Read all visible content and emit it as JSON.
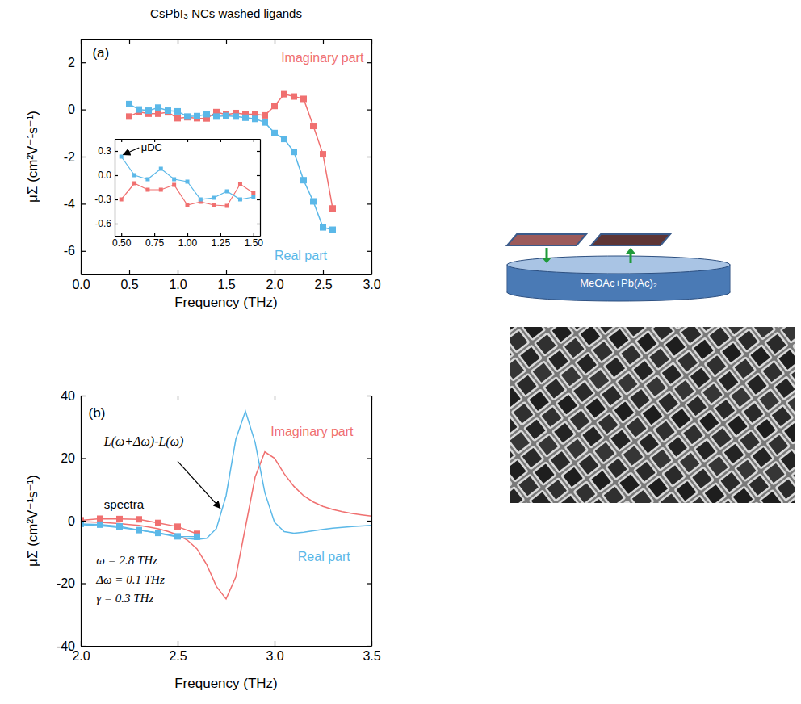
{
  "chart_data": [
    {
      "type": "line",
      "title": "CsPbI₃ NCs washed ligands",
      "x_label": "Frequency (THz)",
      "y_label": "μΣ (cm²V⁻¹s⁻¹)",
      "x": [
        0.5,
        0.6,
        0.7,
        0.8,
        0.9,
        1.0,
        1.1,
        1.2,
        1.3,
        1.4,
        1.5,
        1.6,
        1.7,
        1.8,
        1.9,
        2.0,
        2.1,
        2.2,
        2.3,
        2.4,
        2.5,
        2.6
      ],
      "series": [
        {
          "color": "#f07070",
          "marker": "square",
          "line_style": "solid",
          "values": [
            -0.3,
            -0.1,
            -0.18,
            -0.18,
            -0.12,
            -0.37,
            -0.33,
            -0.37,
            -0.38,
            -0.11,
            -0.22,
            -0.15,
            -0.2,
            -0.2,
            -0.25,
            0.15,
            0.65,
            0.55,
            0.45,
            -0.7,
            -1.9,
            -4.2
          ]
        },
        {
          "color": "#5bb8e8",
          "marker": "square",
          "line_style": "solid",
          "values": [
            0.23,
            0.0,
            -0.05,
            0.08,
            -0.05,
            -0.08,
            -0.3,
            -0.28,
            -0.2,
            -0.3,
            -0.27,
            -0.3,
            -0.35,
            -0.4,
            -0.55,
            -1.0,
            -1.25,
            -1.8,
            -3.0,
            -3.9,
            -5.0,
            -5.1
          ]
        }
      ],
      "xlim": [
        0,
        3
      ],
      "xticks": [
        {
          "value": 0,
          "label": "0.0"
        },
        {
          "value": 0.5,
          "label": "0.5"
        },
        {
          "value": 1,
          "label": "1.0"
        },
        {
          "value": 1.5,
          "label": "1.5"
        },
        {
          "value": 2,
          "label": "2.0"
        },
        {
          "value": 2.5,
          "label": "2.5"
        },
        {
          "value": 3,
          "label": "3.0"
        }
      ],
      "ylim": [
        -7,
        3
      ],
      "yticks": [
        -6,
        -4,
        -2,
        0,
        2
      ],
      "annotations": [
        "(a)",
        "Imaginary part",
        "Real part"
      ]
    },
    {
      "type": "line",
      "x": [
        0.5,
        0.6,
        0.7,
        0.8,
        0.9,
        1.0,
        1.1,
        1.2,
        1.3,
        1.4,
        1.5
      ],
      "series": [
        {
          "color": "#f07070",
          "marker": "square",
          "line_style": "solid",
          "values": [
            -0.3,
            -0.1,
            -0.18,
            -0.18,
            -0.12,
            -0.37,
            -0.33,
            -0.37,
            -0.38,
            -0.11,
            -0.22
          ]
        },
        {
          "color": "#5bb8e8",
          "marker": "square",
          "line_style": "solid",
          "values": [
            0.23,
            0.0,
            -0.05,
            0.08,
            -0.05,
            -0.08,
            -0.3,
            -0.28,
            -0.2,
            -0.3,
            -0.27
          ]
        }
      ],
      "xlim": [
        0.45,
        1.55
      ],
      "xticks": [
        {
          "value": 0.5,
          "label": "0.50"
        },
        {
          "value": 0.75,
          "label": "0.75"
        },
        {
          "value": 1,
          "label": "1.00"
        },
        {
          "value": 1.25,
          "label": "1.25"
        },
        {
          "value": 1.5,
          "label": "1.50"
        }
      ],
      "ylim": [
        -0.75,
        0.45
      ],
      "yticks": [
        0.3,
        {
          "value": 0,
          "label": "0.0"
        },
        -0.3,
        -0.6
      ],
      "annotations": [
        "μDC"
      ]
    },
    {
      "type": "line",
      "x_label": "Frequency (THz)",
      "y_label": "μΣ (cm²V⁻¹s⁻¹)",
      "series": [
        {
          "color": "#f07070",
          "marker": "none",
          "line_style": "solid",
          "x": [
            2.0,
            2.05,
            2.1,
            2.15,
            2.2,
            2.25,
            2.3,
            2.35,
            2.4,
            2.45,
            2.5,
            2.55,
            2.6,
            2.65,
            2.7,
            2.75,
            2.8,
            2.85,
            2.9,
            2.95,
            3.0,
            3.05,
            3.1,
            3.15,
            3.2,
            3.25,
            3.3,
            3.35,
            3.4,
            3.45,
            3.5
          ],
          "values": [
            -0.3,
            -0.4,
            -0.5,
            -0.7,
            -0.9,
            -1.2,
            -1.5,
            -2.0,
            -2.6,
            -3.4,
            -4.5,
            -6.2,
            -9,
            -14,
            -21,
            -25,
            -18,
            -2,
            14,
            22,
            20,
            15,
            11,
            8,
            6,
            4.6,
            3.6,
            2.9,
            2.3,
            1.9,
            1.5
          ]
        },
        {
          "color": "#5bb8e8",
          "marker": "none",
          "line_style": "solid",
          "x": [
            2.0,
            2.05,
            2.1,
            2.15,
            2.2,
            2.25,
            2.3,
            2.35,
            2.4,
            2.45,
            2.5,
            2.55,
            2.6,
            2.65,
            2.7,
            2.75,
            2.8,
            2.85,
            2.9,
            2.95,
            3.0,
            3.05,
            3.1,
            3.15,
            3.2,
            3.25,
            3.3,
            3.35,
            3.4,
            3.45,
            3.5
          ],
          "values": [
            -1.2,
            -1.4,
            -1.6,
            -1.9,
            -2.2,
            -2.6,
            -3.0,
            -3.5,
            -4.0,
            -4.6,
            -5.2,
            -5.7,
            -6.0,
            -5.6,
            -2.5,
            8,
            26,
            35,
            25,
            9,
            -0.5,
            -3.5,
            -4.0,
            -3.7,
            -3.2,
            -2.8,
            -2.4,
            -2.1,
            -1.9,
            -1.7,
            -1.5
          ]
        },
        {
          "color": "#f07070",
          "marker": "square",
          "line_style": "solid",
          "x": [
            2.0,
            2.1,
            2.2,
            2.3,
            2.4,
            2.5,
            2.6
          ],
          "values": [
            0.15,
            0.65,
            0.55,
            0.45,
            -0.7,
            -1.9,
            -4.2
          ]
        },
        {
          "color": "#5bb8e8",
          "marker": "square",
          "line_style": "solid",
          "x": [
            2.0,
            2.1,
            2.2,
            2.3,
            2.4,
            2.5,
            2.6
          ],
          "values": [
            -1.0,
            -1.25,
            -1.8,
            -3.0,
            -3.9,
            -5.0,
            -5.1
          ]
        }
      ],
      "xlim": [
        2,
        3.5
      ],
      "xticks": [
        {
          "value": 2,
          "label": "2.0"
        },
        {
          "value": 2.5,
          "label": "2.5"
        },
        {
          "value": 3,
          "label": "3.0"
        },
        {
          "value": 3.5,
          "label": "3.5"
        }
      ],
      "ylim": [
        -40,
        40
      ],
      "yticks": [
        -40,
        -20,
        0,
        20,
        40
      ],
      "annotations": [
        "(b)",
        "L(ω+Δω)-L(ω)",
        "spectra",
        "Imaginary part",
        "Real part",
        "ω = 2.8  THz",
        "Δω = 0.1 THz",
        "γ = 0.3 THz"
      ]
    }
  ],
  "diagram": {
    "dish_label": "MeOAc+Pb(Ac)₂"
  }
}
